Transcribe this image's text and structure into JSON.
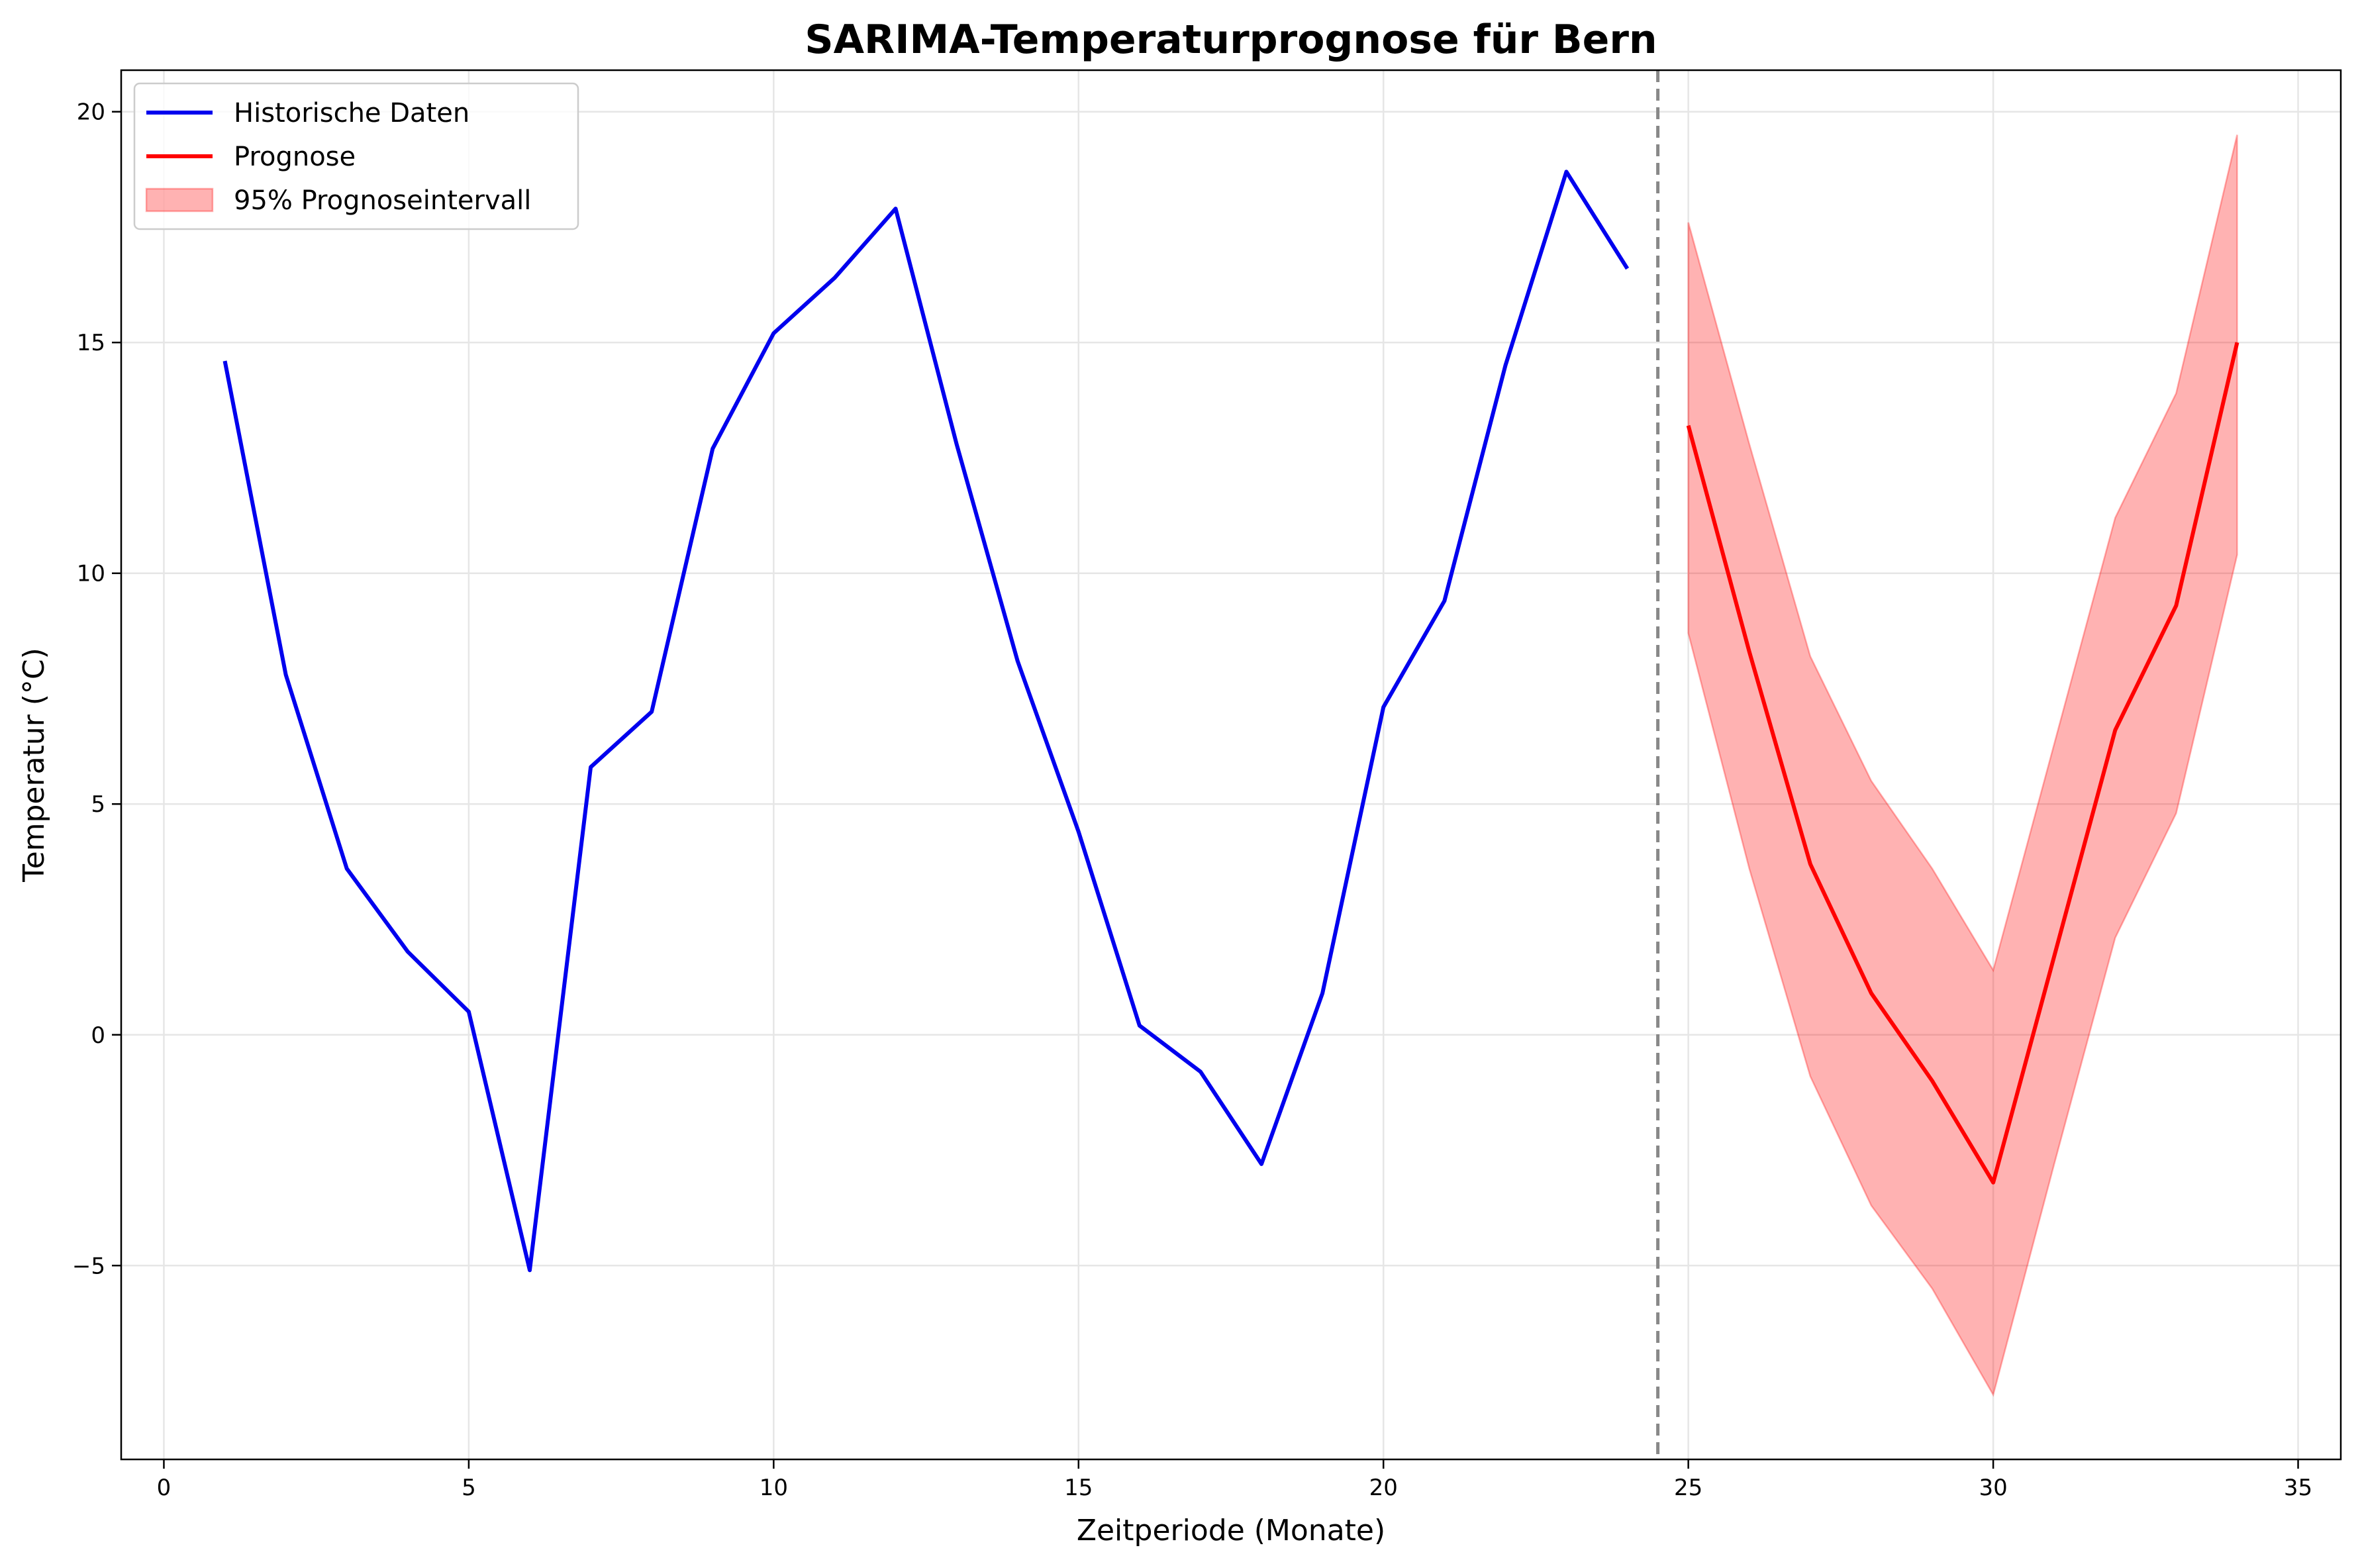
{
  "chart_data": {
    "type": "line",
    "title": "SARIMA-Temperaturprognose für Bern",
    "xlabel": "Zeitperiode (Monate)",
    "ylabel": "Temperatur (°C)",
    "xlim": [
      -0.7,
      35.7
    ],
    "ylim": [
      -9.2,
      20.9
    ],
    "xticks": [
      0,
      5,
      10,
      15,
      20,
      25,
      30,
      35
    ],
    "yticks": [
      -5,
      0,
      5,
      10,
      15,
      20
    ],
    "xtick_labels": [
      "0",
      "5",
      "10",
      "15",
      "20",
      "25",
      "30",
      "35"
    ],
    "ytick_labels": [
      "−5",
      "0",
      "5",
      "10",
      "15",
      "20"
    ],
    "grid": true,
    "legend_position": "upper-left",
    "split_marker_x": 24.5,
    "series": [
      {
        "name": "Historische Daten",
        "color": "#0000ee",
        "x": [
          1,
          2,
          3,
          4,
          5,
          6,
          7,
          8,
          9,
          10,
          11,
          12,
          13,
          14,
          15,
          16,
          17,
          18,
          19,
          20,
          21,
          22,
          23,
          24
        ],
        "y": [
          14.6,
          7.8,
          3.6,
          1.8,
          0.5,
          -5.1,
          5.8,
          7.0,
          12.7,
          15.2,
          16.4,
          17.9,
          12.8,
          8.1,
          4.4,
          0.2,
          -0.8,
          -2.8,
          0.9,
          7.1,
          9.4,
          14.5,
          18.7,
          16.6
        ]
      },
      {
        "name": "Prognose",
        "color": "#ff0000",
        "x": [
          25,
          26,
          27,
          28,
          29,
          30,
          31,
          32,
          33,
          34
        ],
        "y": [
          13.2,
          8.3,
          3.7,
          0.9,
          -1.0,
          -3.2,
          1.7,
          6.6,
          9.3,
          15.0
        ]
      }
    ],
    "interval": {
      "name": "95% Prognoseintervall",
      "color": "#ff0000",
      "x": [
        25,
        26,
        27,
        28,
        29,
        30,
        31,
        32,
        33,
        34
      ],
      "lower": [
        8.7,
        3.6,
        -0.9,
        -3.7,
        -5.5,
        -7.8,
        -2.8,
        2.1,
        4.8,
        10.4
      ],
      "upper": [
        17.6,
        12.8,
        8.2,
        5.5,
        3.6,
        1.4,
        6.3,
        11.2,
        13.9,
        19.5
      ]
    }
  }
}
